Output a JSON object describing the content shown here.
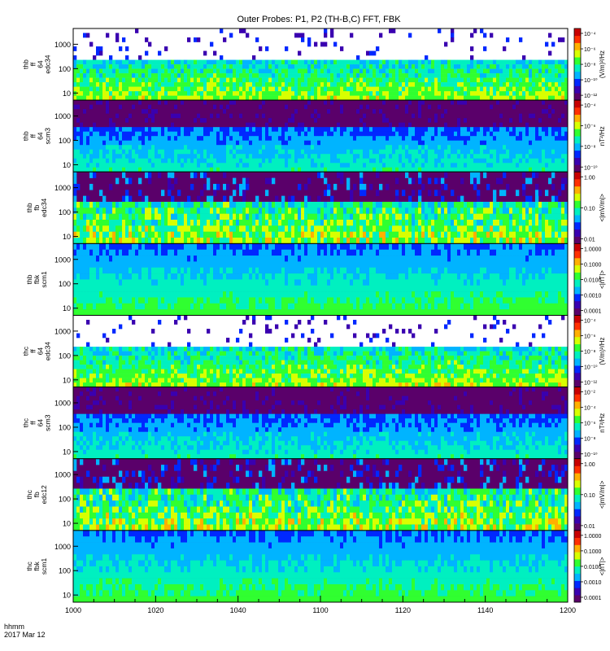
{
  "title": "Outer Probes: P1, P2 (TH-B,C) FFT, FBK",
  "footer": {
    "unit_label": "hhmm",
    "date_label": "2017 Mar 12"
  },
  "colormap": [
    "#5a006a",
    "#3a00b0",
    "#0028ff",
    "#00b4ff",
    "#00f0c0",
    "#30ff30",
    "#d8ff00",
    "#ffb000",
    "#ff3000",
    "#c80000"
  ],
  "chart_data": {
    "type": "heatmap",
    "title": "Outer Probes: P1, P2 (TH-B,C) FFT, FBK",
    "x": {
      "range": [
        "1000",
        "1200"
      ],
      "ticks": [
        "1000",
        "1020",
        "1040",
        "1100",
        "1120",
        "1140",
        "1200"
      ],
      "minor_ticks_per_major": 4
    },
    "panels": [
      {
        "ylabel_lines": [
          "thb",
          "ff",
          "64",
          "edc34"
        ],
        "y_ticks": [
          "1000",
          "100",
          "10"
        ],
        "colorbar_ticks": [
          "10⁻⁴",
          "10⁻⁶",
          "10⁻⁸",
          "10⁻¹⁰",
          "10⁻¹²"
        ],
        "colorbar_label": "(V/m)²/Hz",
        "colorbar_style": "spectral",
        "pattern": "fft_e"
      },
      {
        "ylabel_lines": [
          "thb",
          "ff",
          "64",
          "scm3"
        ],
        "y_ticks": [
          "1000",
          "100",
          "10"
        ],
        "colorbar_ticks": [
          "10⁻⁴",
          "10⁻⁶",
          "10⁻⁸",
          "10⁻¹⁰"
        ],
        "colorbar_label": "nT²/Hz",
        "colorbar_style": "spectral",
        "pattern": "fft_b"
      },
      {
        "ylabel_lines": [
          "thb",
          "fb",
          "edc34"
        ],
        "y_ticks": [
          "1000",
          "100",
          "10"
        ],
        "colorbar_ticks": [
          "1.00",
          "0.10",
          "0.01"
        ],
        "colorbar_label": "<|mV/m|>",
        "colorbar_style": "spectral",
        "pattern": "fbk_e"
      },
      {
        "ylabel_lines": [
          "thb",
          "fbk",
          "scm1"
        ],
        "y_ticks": [
          "1000",
          "100",
          "10"
        ],
        "colorbar_ticks": [
          "1.0000",
          "0.1000",
          "0.0100",
          "0.0010",
          "0.0001"
        ],
        "colorbar_label": "<|nT|>",
        "colorbar_style": "spectral",
        "pattern": "fbk_b"
      },
      {
        "ylabel_lines": [
          "thc",
          "ff",
          "64",
          "edc34"
        ],
        "y_ticks": [
          "1000",
          "100",
          "10"
        ],
        "colorbar_ticks": [
          "10⁻⁴",
          "10⁻⁶",
          "10⁻⁸",
          "10⁻¹⁰",
          "10⁻¹²"
        ],
        "colorbar_label": "(V/m)²/Hz",
        "colorbar_style": "spectral",
        "pattern": "fft_e"
      },
      {
        "ylabel_lines": [
          "thc",
          "ff",
          "64",
          "scm3"
        ],
        "y_ticks": [
          "1000",
          "100",
          "10"
        ],
        "colorbar_ticks": [
          "10⁻²",
          "10⁻⁴",
          "10⁻⁶",
          "10⁻⁸",
          "10⁻¹⁰"
        ],
        "colorbar_label": "nT²/Hz",
        "colorbar_style": "spectral",
        "pattern": "fft_b"
      },
      {
        "ylabel_lines": [
          "thc",
          "fb",
          "edc12"
        ],
        "y_ticks": [
          "1000",
          "100",
          "10"
        ],
        "colorbar_ticks": [
          "1.00",
          "0.10",
          "0.01"
        ],
        "colorbar_label": "<|mV/m|>",
        "colorbar_style": "spectral",
        "pattern": "fbk_e"
      },
      {
        "ylabel_lines": [
          "thc",
          "fbk",
          "scm1"
        ],
        "y_ticks": [
          "1000",
          "100",
          "10"
        ],
        "colorbar_ticks": [
          "1.0000",
          "0.1000",
          "0.0100",
          "0.0010",
          "0.0001"
        ],
        "colorbar_label": "<|nT|>",
        "colorbar_style": "spectral",
        "pattern": "fbk_b"
      }
    ]
  }
}
